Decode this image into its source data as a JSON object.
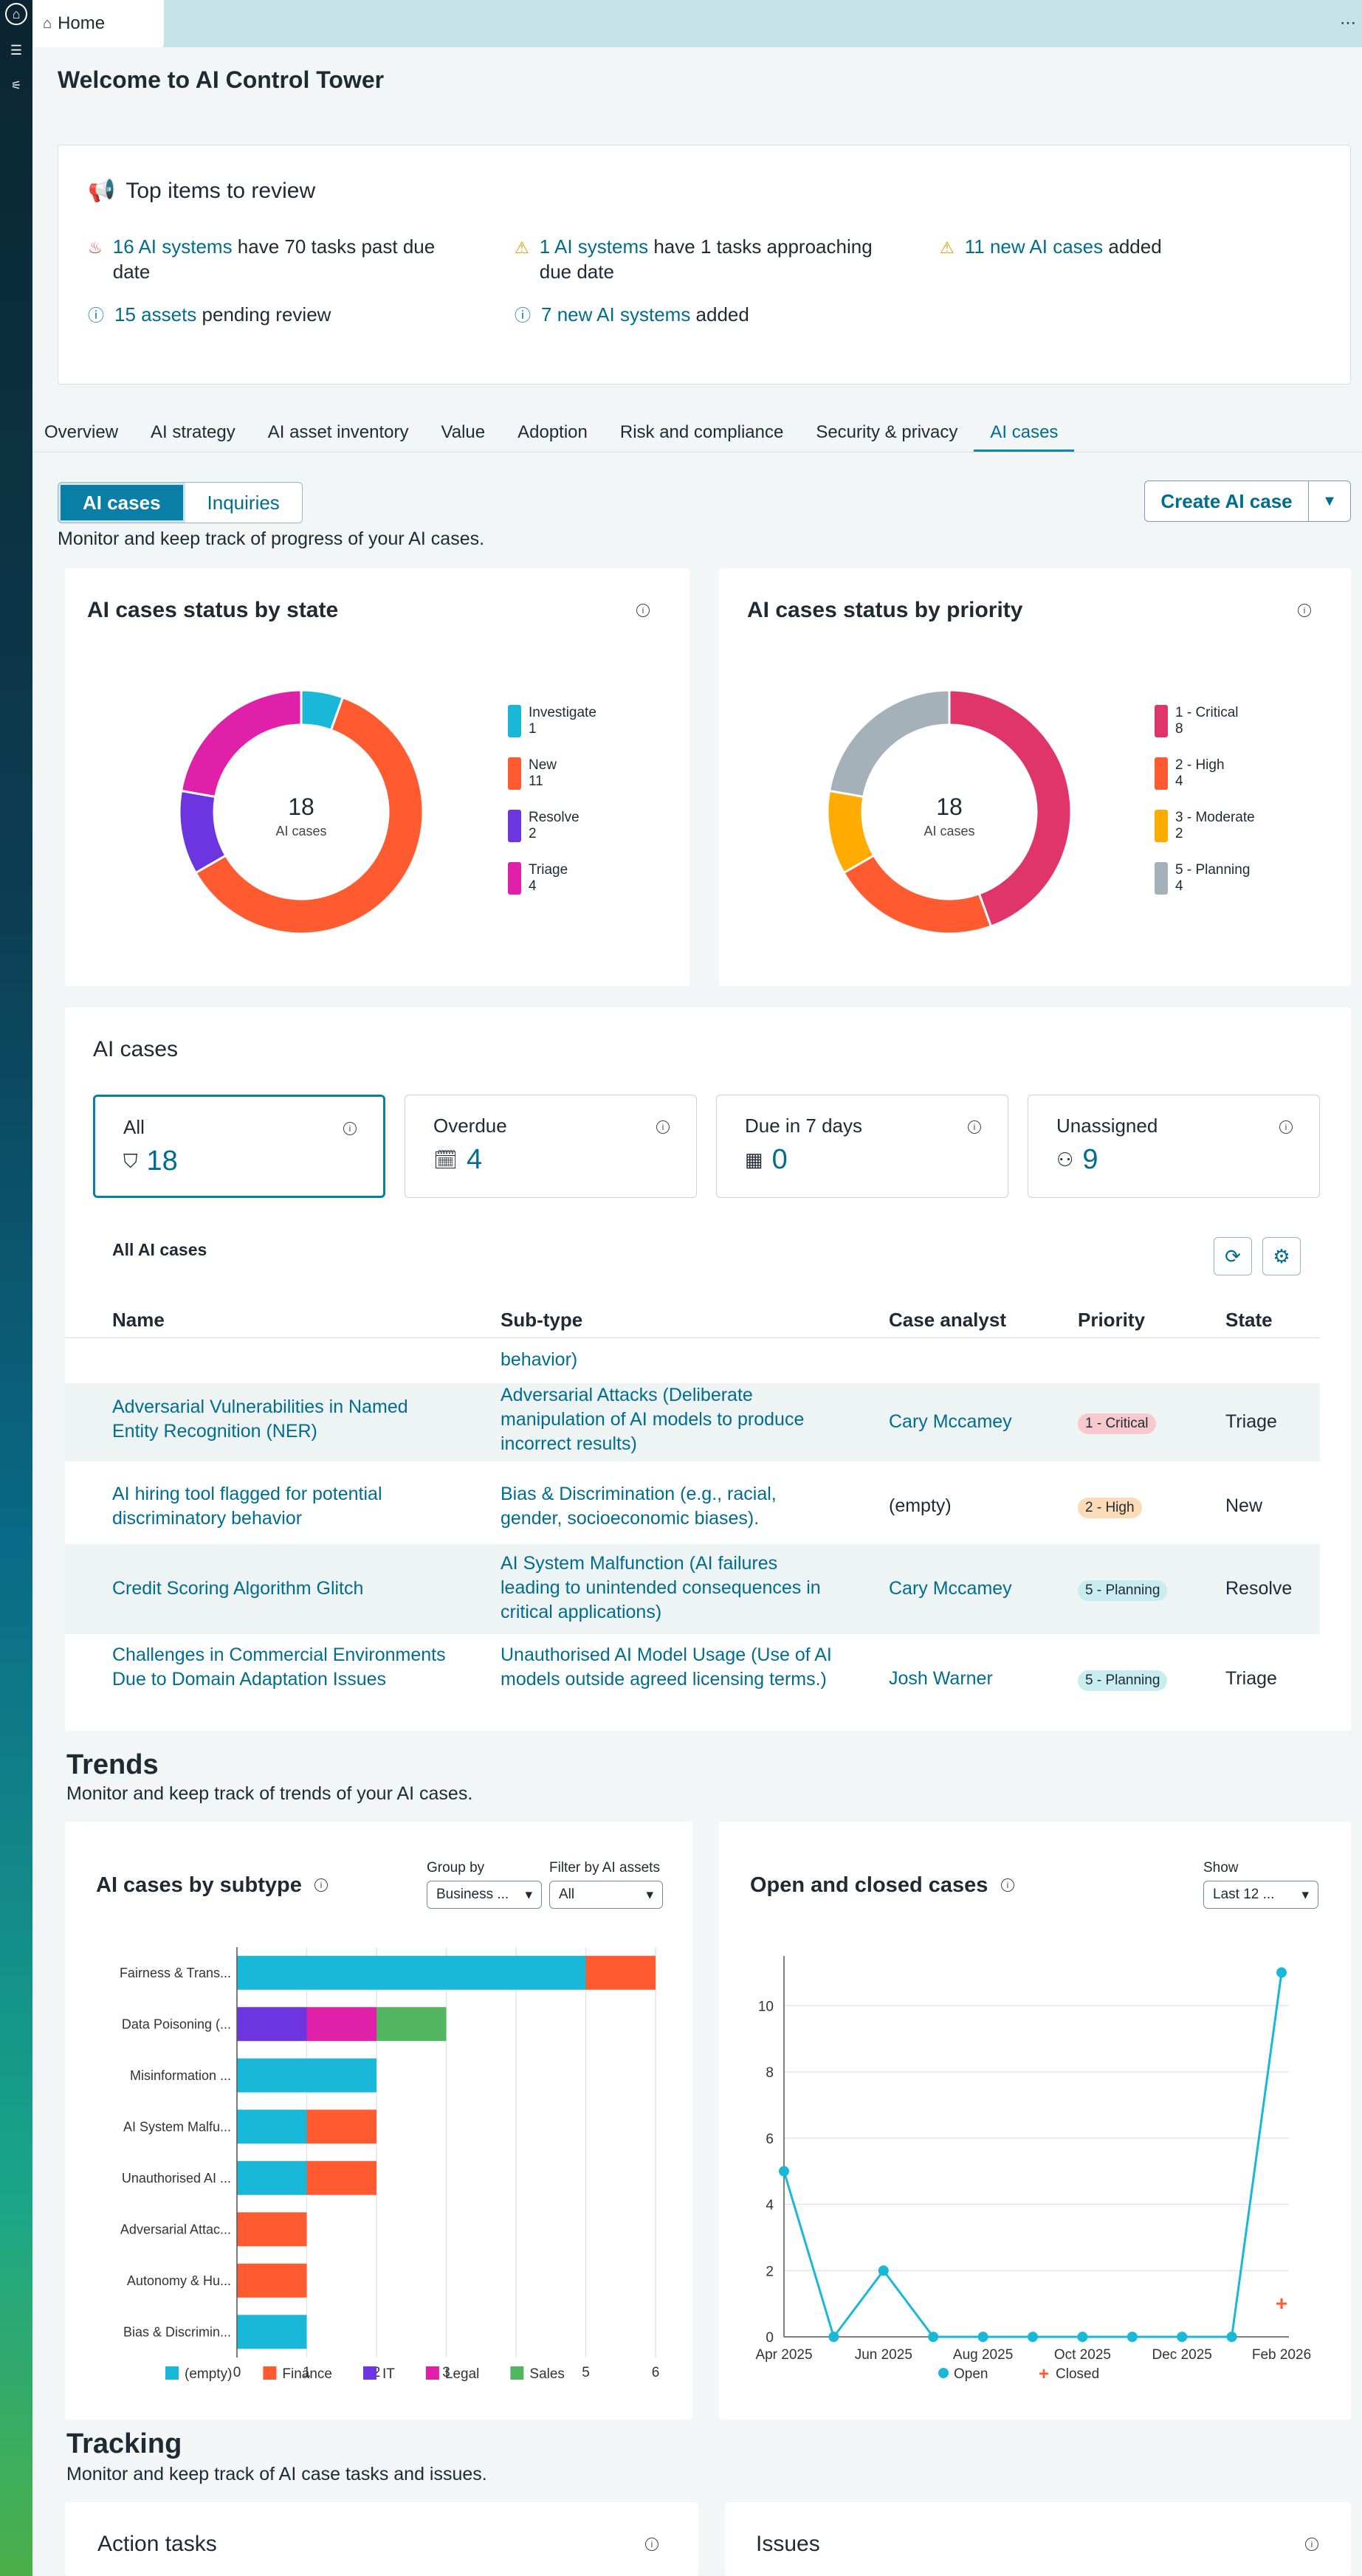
{
  "tab": {
    "label": "Home"
  },
  "page_title": "Welcome to AI Control Tower",
  "review": {
    "title": "Top items to review",
    "items": [
      {
        "link": "16 AI systems",
        "text": " have 70 tasks past due date"
      },
      {
        "link": "1 AI systems",
        "text": " have 1 tasks approaching due date"
      },
      {
        "link": "11 new AI cases",
        "text": " added"
      },
      {
        "link": "15 assets",
        "text": " pending review"
      },
      {
        "link": "7 new AI systems",
        "text": " added"
      }
    ]
  },
  "tabs": [
    "Overview",
    "AI strategy",
    "AI asset inventory",
    "Value",
    "Adoption",
    "Risk and compliance",
    "Security & privacy",
    "AI cases"
  ],
  "segment": {
    "a": "AI cases",
    "b": "Inquiries"
  },
  "subtitle": "Monitor and keep track of progress of your AI cases.",
  "create_button": "Create AI case",
  "donut_state": {
    "title": "AI cases status by state",
    "center_value": "18",
    "center_label": "AI cases",
    "legend": [
      {
        "name": "Investigate",
        "count": "1",
        "color": "#1ab8d8"
      },
      {
        "name": "New",
        "count": "11",
        "color": "#ff5a30"
      },
      {
        "name": "Resolve",
        "count": "2",
        "color": "#6d35e0"
      },
      {
        "name": "Triage",
        "count": "4",
        "color": "#e020a8"
      }
    ]
  },
  "donut_priority": {
    "title": "AI cases status by priority",
    "center_value": "18",
    "center_label": "AI cases",
    "legend": [
      {
        "name": "1 - Critical",
        "count": "8",
        "color": "#e0356a"
      },
      {
        "name": "2 - High",
        "count": "4",
        "color": "#ff5a30"
      },
      {
        "name": "3 - Moderate",
        "count": "2",
        "color": "#ffab00"
      },
      {
        "name": "5 - Planning",
        "count": "4",
        "color": "#a5b1b8"
      }
    ]
  },
  "cases": {
    "title": "AI cases",
    "kpis": [
      {
        "label": "All",
        "value": "18",
        "icon": "shield-icon"
      },
      {
        "label": "Overdue",
        "value": "4",
        "icon": "calendar-alert-icon"
      },
      {
        "label": "Due in 7 days",
        "value": "0",
        "icon": "calendar-icon"
      },
      {
        "label": "Unassigned",
        "value": "9",
        "icon": "user-minus-icon"
      }
    ],
    "list_title": "All AI cases",
    "headers": [
      "Name",
      "Sub-type",
      "Case analyst",
      "Priority",
      "State"
    ],
    "partial_subtype": "behavior)",
    "rows": [
      {
        "name": "Adversarial Vulnerabilities in Named Entity Recognition (NER)",
        "subtype": "Adversarial Attacks (Deliberate manipulation of AI models to produce incorrect results)",
        "analyst": "Cary Mccamey",
        "priority": "1 - Critical",
        "state": "Triage"
      },
      {
        "name": "AI hiring tool flagged for potential discriminatory behavior",
        "subtype": "Bias & Discrimination (e.g., racial, gender, socioeconomic biases).",
        "analyst": "(empty)",
        "priority": "2 - High",
        "state": "New"
      },
      {
        "name": "Credit Scoring Algorithm Glitch",
        "subtype": "AI System Malfunction (AI failures leading to unintended consequences in critical applications)",
        "analyst": "Cary Mccamey",
        "priority": "5 - Planning",
        "state": "Resolve"
      },
      {
        "name": "Challenges in Commercial Environments Due to Domain Adaptation Issues",
        "subtype": "Unauthorised AI Model Usage (Use of AI models outside agreed licensing terms.)",
        "analyst": "Josh Warner",
        "priority": "5 - Planning",
        "state": "Triage"
      }
    ]
  },
  "trends": {
    "title": "Trends",
    "subtitle": "Monitor and keep track of trends of your AI cases."
  },
  "subtype_chart": {
    "title": "AI cases by subtype",
    "group_label": "Group by",
    "group_value": "Business ...",
    "filter_label": "Filter by AI assets",
    "filter_value": "All"
  },
  "open_closed": {
    "title": "Open and closed cases",
    "show_label": "Show",
    "show_value": "Last 12 ..."
  },
  "chart_data": [
    {
      "type": "bar",
      "orientation": "horizontal",
      "stacked": true,
      "categories": [
        "Fairness & Trans...",
        "Data Poisoning (...",
        "Misinformation ...",
        "AI System Malfu...",
        "Unauthorised AI ...",
        "Adversarial Attac...",
        "Autonomy & Hu...",
        "Bias & Discrimin..."
      ],
      "series": [
        {
          "name": "(empty)",
          "color": "#1ab8d8",
          "values": [
            5,
            0,
            2,
            1,
            1,
            0,
            0,
            1
          ]
        },
        {
          "name": "Finance",
          "color": "#ff5a30",
          "values": [
            1,
            0,
            0,
            1,
            1,
            1,
            1,
            0
          ]
        },
        {
          "name": "IT",
          "color": "#6d35e0",
          "values": [
            0,
            1,
            0,
            0,
            0,
            0,
            0,
            0
          ]
        },
        {
          "name": "Legal",
          "color": "#e020a8",
          "values": [
            0,
            1,
            0,
            0,
            0,
            0,
            0,
            0
          ]
        },
        {
          "name": "Sales",
          "color": "#52b560",
          "values": [
            0,
            1,
            0,
            0,
            0,
            0,
            0,
            0
          ]
        }
      ],
      "xlim": [
        0,
        6
      ],
      "xticks": [
        0,
        1,
        2,
        3,
        4,
        5,
        6
      ]
    },
    {
      "type": "line",
      "x": [
        "Apr 2025",
        "May 2025",
        "Jun 2025",
        "Jul 2025",
        "Aug 2025",
        "Sep 2025",
        "Oct 2025",
        "Nov 2025",
        "Dec 2025",
        "Jan 2026",
        "Feb 2026"
      ],
      "xticks": [
        "Apr 2025",
        "Jun 2025",
        "Aug 2025",
        "Oct 2025",
        "Dec 2025",
        "Feb 2026"
      ],
      "series": [
        {
          "name": "Open",
          "color": "#1ab8d8",
          "values": [
            5,
            0,
            2,
            0,
            0,
            0,
            0,
            0,
            0,
            0,
            11
          ]
        },
        {
          "name": "Closed",
          "color": "#ff5a30",
          "values": [
            null,
            null,
            null,
            null,
            null,
            null,
            null,
            null,
            null,
            null,
            1
          ]
        }
      ],
      "ylim": [
        0,
        11.5
      ],
      "yticks": [
        0,
        2,
        4,
        6,
        8,
        10
      ]
    }
  ],
  "tracking": {
    "title": "Tracking",
    "subtitle": "Monitor and keep track of AI case tasks and issues."
  },
  "action_tasks": {
    "title": "Action tasks"
  },
  "issues": {
    "title": "Issues"
  }
}
